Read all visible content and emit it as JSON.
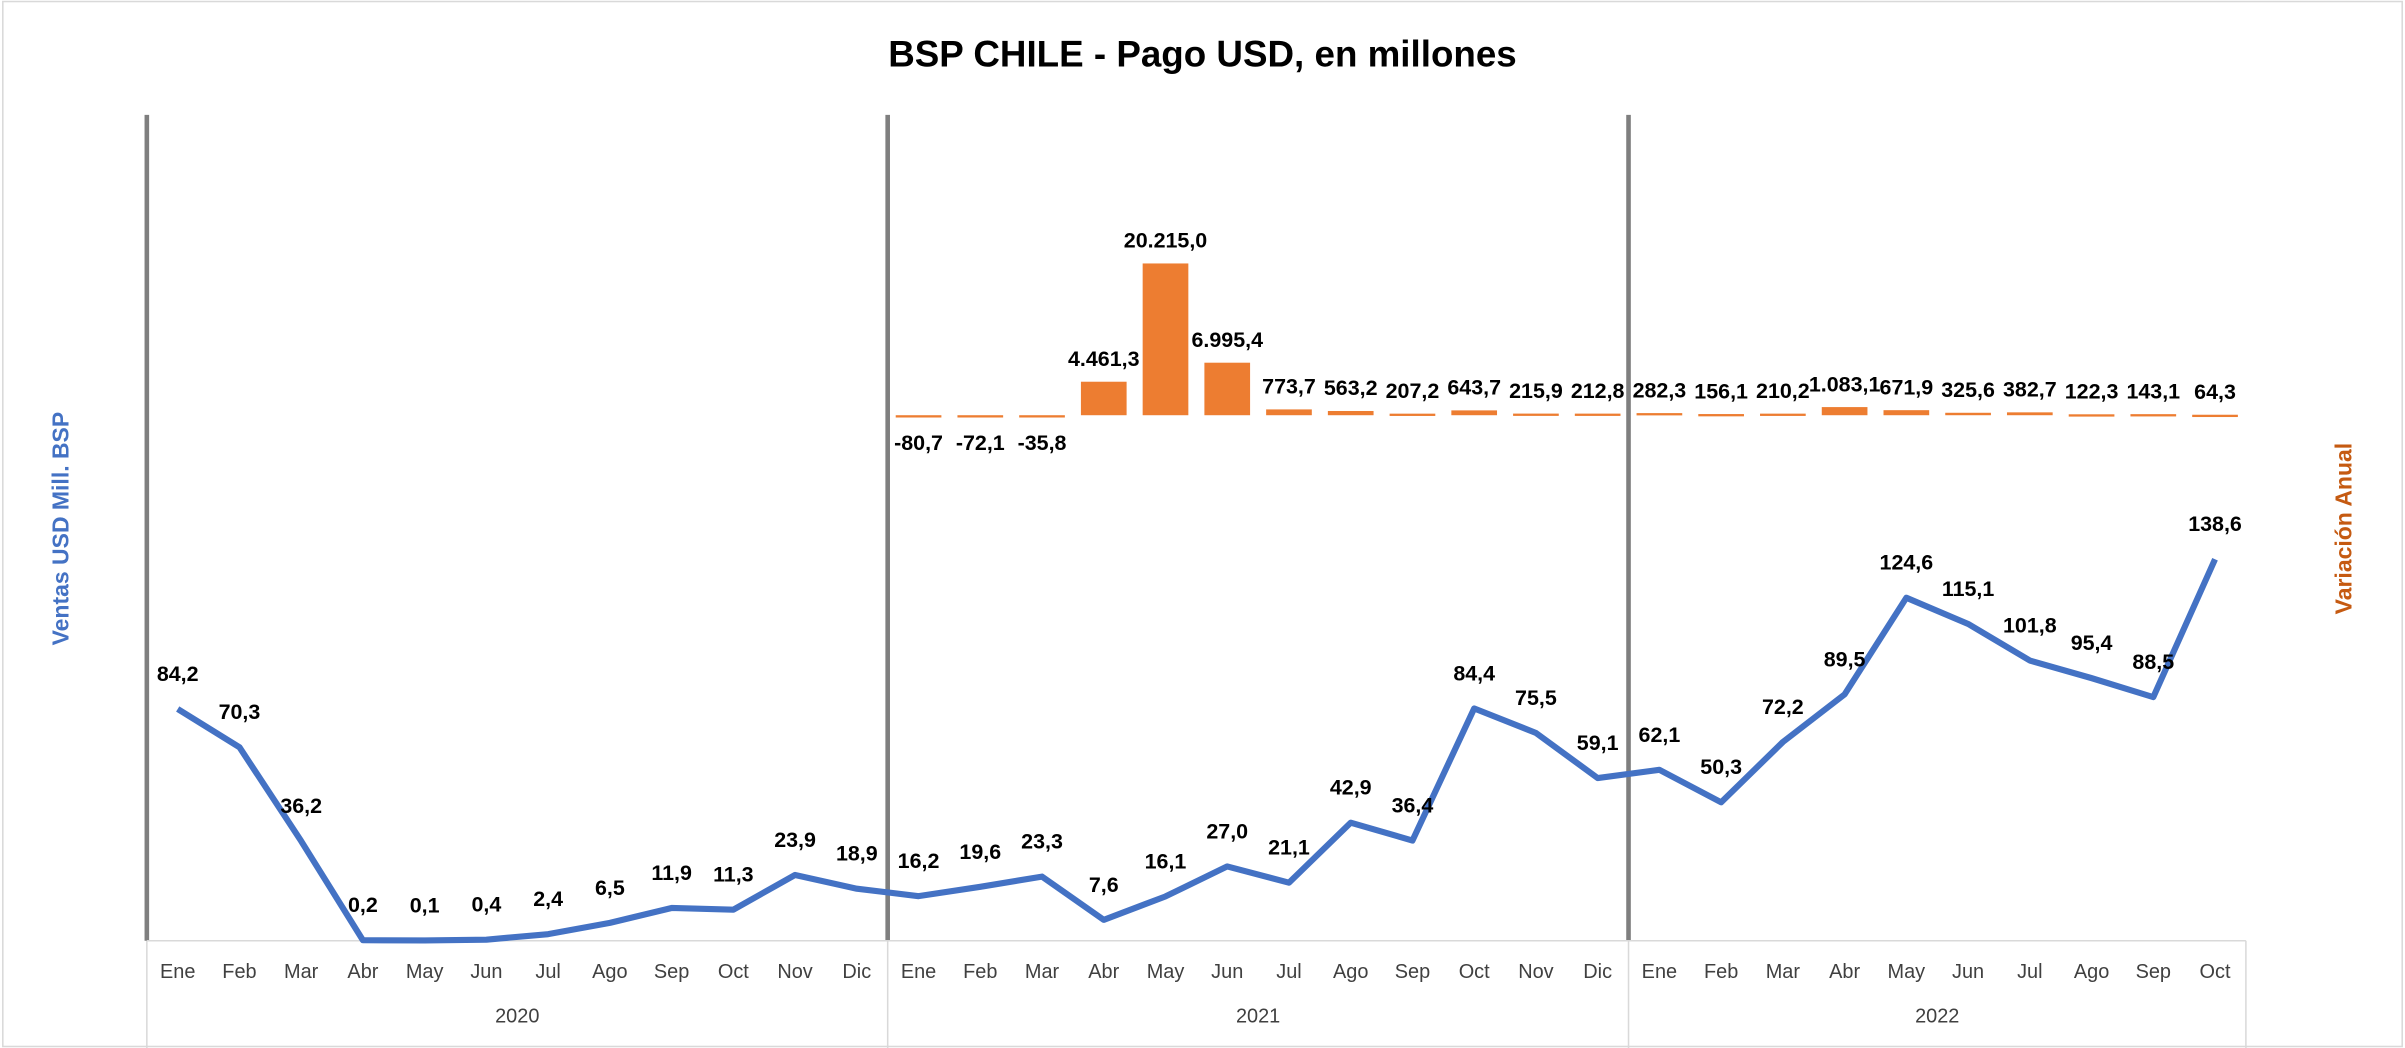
{
  "chart_data": {
    "type": "bar_line",
    "title": "BSP CHILE  - Pago USD, en millones",
    "y_label": "Ventas USD Mill. BSP",
    "y2_label": "Variación Anual",
    "groups": [
      {
        "label": "2020",
        "categories": [
          "Ene",
          "Feb",
          "Mar",
          "Abr",
          "May",
          "Jun",
          "Jul",
          "Ago",
          "Sep",
          "Oct",
          "Nov",
          "Dic"
        ]
      },
      {
        "label": "2021",
        "categories": [
          "Ene",
          "Feb",
          "Mar",
          "Abr",
          "May",
          "Jun",
          "Jul",
          "Ago",
          "Sep",
          "Oct",
          "Nov",
          "Dic"
        ]
      },
      {
        "label": "2022",
        "categories": [
          "Ene",
          "Feb",
          "Mar",
          "Abr",
          "May",
          "Jun",
          "Jul",
          "Ago",
          "Sep",
          "Oct"
        ]
      }
    ],
    "ylim": [
      0,
      300
    ],
    "y2lim": [
      -70000,
      40000
    ],
    "series": [
      {
        "type": "line",
        "color": "#4472c4",
        "values": [
          84.2,
          70.3,
          36.2,
          0.2,
          0.1,
          0.4,
          2.4,
          6.5,
          11.9,
          11.3,
          23.9,
          18.9,
          16.2,
          19.6,
          23.3,
          7.6,
          16.1,
          27.0,
          21.1,
          42.9,
          36.4,
          84.4,
          75.5,
          59.1,
          62.1,
          50.3,
          72.2,
          89.5,
          124.6,
          115.1,
          101.8,
          95.4,
          88.5,
          138.6
        ],
        "value_labels": [
          "84,2",
          "70,3",
          "36,2",
          "0,2",
          "0,1",
          "0,4",
          "2,4",
          "6,5",
          "11,9",
          "11,3",
          "23,9",
          "18,9",
          "16,2",
          "19,6",
          "23,3",
          "7,6",
          "16,1",
          "27,0",
          "21,1",
          "42,9",
          "36,4",
          "84,4",
          "75,5",
          "59,1",
          "62,1",
          "50,3",
          "72,2",
          "89,5",
          "124,6",
          "115,1",
          "101,8",
          "95,4",
          "88,5",
          "138,6"
        ]
      },
      {
        "type": "bar",
        "axis": "y2",
        "color": "#ed7d31",
        "values": [
          null,
          null,
          null,
          null,
          null,
          null,
          null,
          null,
          null,
          null,
          null,
          null,
          -80.7,
          -72.1,
          -35.8,
          4461.3,
          20215.0,
          6995.4,
          773.7,
          563.2,
          207.2,
          643.7,
          215.9,
          212.8,
          282.3,
          156.1,
          210.2,
          1083.1,
          671.9,
          325.6,
          382.7,
          122.3,
          143.1,
          64.3
        ],
        "value_labels": [
          null,
          null,
          null,
          null,
          null,
          null,
          null,
          null,
          null,
          null,
          null,
          null,
          "-80,7",
          "-72,1",
          "-35,8",
          "4.461,3",
          "20.215,0",
          "6.995,4",
          "773,7",
          "563,2",
          "207,2",
          "643,7",
          "215,9",
          "212,8",
          "282,3",
          "156,1",
          "210,2",
          "1.083,1",
          "671,9",
          "325,6",
          "382,7",
          "122,3",
          "143,1",
          "64,3"
        ]
      }
    ]
  }
}
